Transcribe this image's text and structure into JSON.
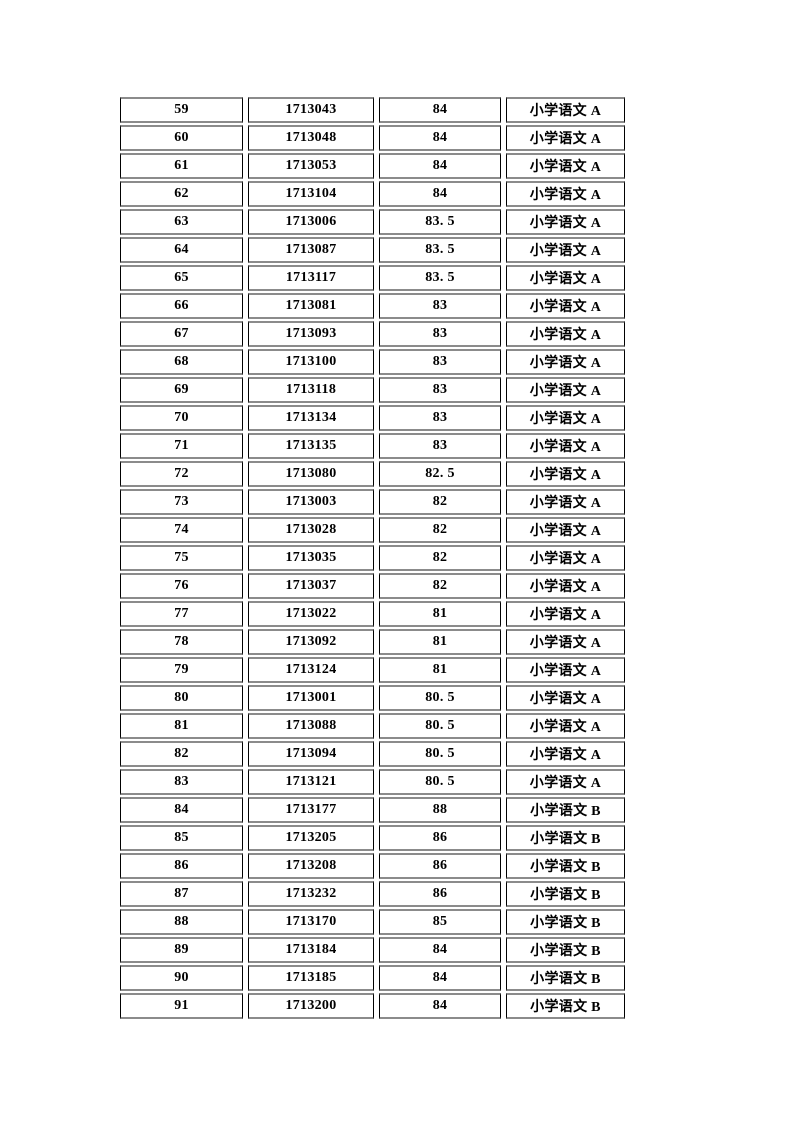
{
  "page": {
    "kind": "document-table-page",
    "background": "#ffffff"
  },
  "colors": {
    "border_horizontal": "#8b8b8b",
    "border_vertical": "#000000",
    "text": "#000000",
    "cell_background": "#ffffff"
  },
  "table": {
    "rows": [
      {
        "rank": "59",
        "candidate_id": "1713043",
        "score": "84",
        "subject": "小学语文 A"
      },
      {
        "rank": "60",
        "candidate_id": "1713048",
        "score": "84",
        "subject": "小学语文 A"
      },
      {
        "rank": "61",
        "candidate_id": "1713053",
        "score": "84",
        "subject": "小学语文 A"
      },
      {
        "rank": "62",
        "candidate_id": "1713104",
        "score": "84",
        "subject": "小学语文 A"
      },
      {
        "rank": "63",
        "candidate_id": "1713006",
        "score": "83. 5",
        "subject": "小学语文 A"
      },
      {
        "rank": "64",
        "candidate_id": "1713087",
        "score": "83. 5",
        "subject": "小学语文 A"
      },
      {
        "rank": "65",
        "candidate_id": "1713117",
        "score": "83. 5",
        "subject": "小学语文 A"
      },
      {
        "rank": "66",
        "candidate_id": "1713081",
        "score": "83",
        "subject": "小学语文 A"
      },
      {
        "rank": "67",
        "candidate_id": "1713093",
        "score": "83",
        "subject": "小学语文 A"
      },
      {
        "rank": "68",
        "candidate_id": "1713100",
        "score": "83",
        "subject": "小学语文 A"
      },
      {
        "rank": "69",
        "candidate_id": "1713118",
        "score": "83",
        "subject": "小学语文 A"
      },
      {
        "rank": "70",
        "candidate_id": "1713134",
        "score": "83",
        "subject": "小学语文 A"
      },
      {
        "rank": "71",
        "candidate_id": "1713135",
        "score": "83",
        "subject": "小学语文 A"
      },
      {
        "rank": "72",
        "candidate_id": "1713080",
        "score": "82. 5",
        "subject": "小学语文 A"
      },
      {
        "rank": "73",
        "candidate_id": "1713003",
        "score": "82",
        "subject": "小学语文 A"
      },
      {
        "rank": "74",
        "candidate_id": "1713028",
        "score": "82",
        "subject": "小学语文 A"
      },
      {
        "rank": "75",
        "candidate_id": "1713035",
        "score": "82",
        "subject": "小学语文 A"
      },
      {
        "rank": "76",
        "candidate_id": "1713037",
        "score": "82",
        "subject": "小学语文 A"
      },
      {
        "rank": "77",
        "candidate_id": "1713022",
        "score": "81",
        "subject": "小学语文 A"
      },
      {
        "rank": "78",
        "candidate_id": "1713092",
        "score": "81",
        "subject": "小学语文 A"
      },
      {
        "rank": "79",
        "candidate_id": "1713124",
        "score": "81",
        "subject": "小学语文 A"
      },
      {
        "rank": "80",
        "candidate_id": "1713001",
        "score": "80. 5",
        "subject": "小学语文 A"
      },
      {
        "rank": "81",
        "candidate_id": "1713088",
        "score": "80. 5",
        "subject": "小学语文 A"
      },
      {
        "rank": "82",
        "candidate_id": "1713094",
        "score": "80. 5",
        "subject": "小学语文 A"
      },
      {
        "rank": "83",
        "candidate_id": "1713121",
        "score": "80. 5",
        "subject": "小学语文 A"
      },
      {
        "rank": "84",
        "candidate_id": "1713177",
        "score": "88",
        "subject": "小学语文 B"
      },
      {
        "rank": "85",
        "candidate_id": "1713205",
        "score": "86",
        "subject": "小学语文 B"
      },
      {
        "rank": "86",
        "candidate_id": "1713208",
        "score": "86",
        "subject": "小学语文 B"
      },
      {
        "rank": "87",
        "candidate_id": "1713232",
        "score": "86",
        "subject": "小学语文 B"
      },
      {
        "rank": "88",
        "candidate_id": "1713170",
        "score": "85",
        "subject": "小学语文 B"
      },
      {
        "rank": "89",
        "candidate_id": "1713184",
        "score": "84",
        "subject": "小学语文 B"
      },
      {
        "rank": "90",
        "candidate_id": "1713185",
        "score": "84",
        "subject": "小学语文 B"
      },
      {
        "rank": "91",
        "candidate_id": "1713200",
        "score": "84",
        "subject": "小学语文 B"
      }
    ]
  }
}
